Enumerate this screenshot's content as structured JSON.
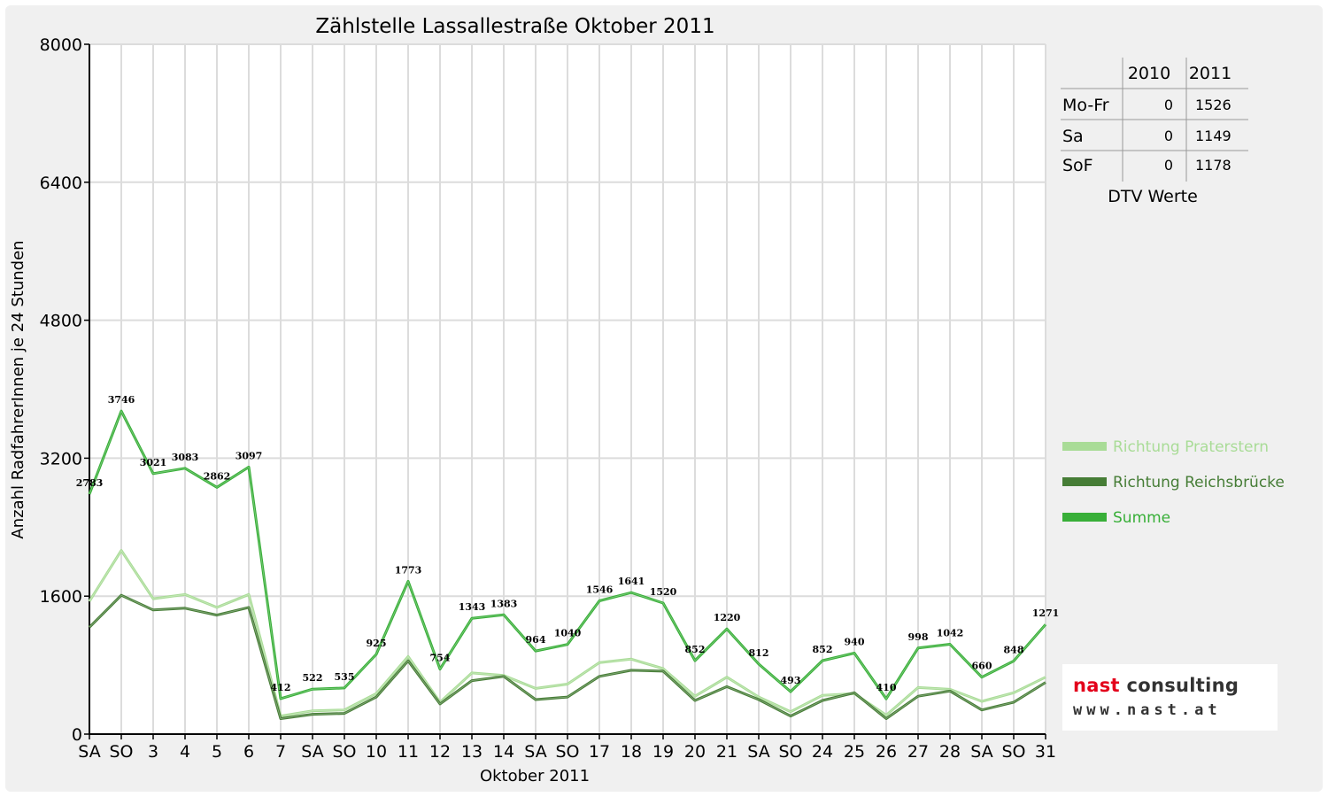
{
  "chart_data": {
    "type": "line",
    "title": "Zählstelle Lassallestraße Oktober 2011",
    "xlabel": "Oktober 2011",
    "ylabel": "Anzahl RadfahrerInnen je 24 Stunden",
    "ylim": [
      0,
      8000
    ],
    "yticks": [
      "0",
      "1600",
      "3200",
      "4800",
      "6400",
      "8000"
    ],
    "grid": true,
    "legend_position": "right",
    "categories": [
      "SA",
      "SO",
      "3",
      "4",
      "5",
      "6",
      "7",
      "SA",
      "SO",
      "10",
      "11",
      "12",
      "13",
      "14",
      "SA",
      "SO",
      "17",
      "18",
      "19",
      "20",
      "21",
      "SA",
      "SO",
      "24",
      "25",
      "26",
      "27",
      "28",
      "SA",
      "SO",
      "31"
    ],
    "highlight_categories": [
      "SO",
      "26"
    ],
    "highlight_color": "#e3001b",
    "series": [
      {
        "name": "Richtung Praterstern",
        "color": "#a9dc97",
        "values": [
          1540,
          2130,
          1570,
          1620,
          1470,
          1620,
          210,
          270,
          280,
          470,
          900,
          370,
          710,
          680,
          530,
          580,
          830,
          870,
          760,
          440,
          660,
          430,
          260,
          450,
          470,
          220,
          540,
          520,
          380,
          480,
          660
        ]
      },
      {
        "name": "Richtung Reichsbrücke",
        "color": "#467d36",
        "values": [
          1240,
          1610,
          1440,
          1460,
          1380,
          1470,
          180,
          230,
          240,
          430,
          850,
          350,
          620,
          670,
          400,
          430,
          670,
          740,
          730,
          390,
          550,
          400,
          210,
          390,
          480,
          180,
          440,
          500,
          280,
          370,
          600
        ]
      },
      {
        "name": "Summe",
        "color": "#38af38",
        "values": [
          2783,
          3746,
          3021,
          3083,
          2862,
          3097,
          412,
          522,
          535,
          925,
          1773,
          754,
          1343,
          1383,
          964,
          1040,
          1546,
          1641,
          1520,
          852,
          1220,
          812,
          493,
          852,
          940,
          410,
          998,
          1042,
          660,
          848,
          1271
        ],
        "labels": [
          "2783",
          "3746",
          "3021",
          "3083",
          "2862",
          "3097",
          "412",
          "522",
          "535",
          "925",
          "1773",
          "754",
          "1343",
          "1383",
          "964",
          "1040",
          "1546",
          "1641",
          "1520",
          "852",
          "1220",
          "812",
          "493",
          "852",
          "940",
          "410",
          "998",
          "1042",
          "660",
          "848",
          "1271"
        ]
      }
    ]
  },
  "dtv_table": {
    "caption": "DTV Werte",
    "headers": [
      "",
      "2010",
      "2011"
    ],
    "rows": [
      {
        "label": "Mo-Fr",
        "v2010": "0",
        "v2011": "1526"
      },
      {
        "label": "Sa",
        "v2010": "0",
        "v2011": "1149"
      },
      {
        "label": "SoF",
        "v2010": "0",
        "v2011": "1178"
      }
    ]
  },
  "logo": {
    "brand": "nast",
    "brand_rest": " consulting",
    "url": "www.nast.at",
    "brand_color": "#e3001b"
  }
}
